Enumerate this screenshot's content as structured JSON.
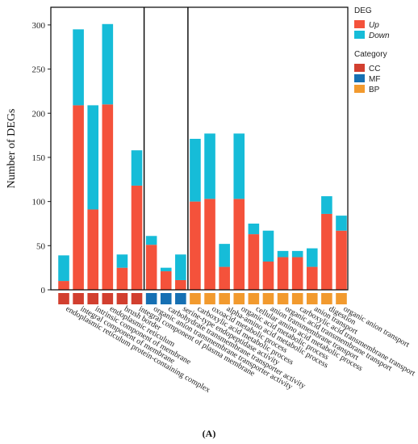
{
  "colors": {
    "up": "#F4523B",
    "down": "#16BCD8",
    "CC": "#D23F2F",
    "MF": "#1670B3",
    "BP": "#F29A2E"
  },
  "chart_data": {
    "type": "bar",
    "stacked": true,
    "ylabel": "Number of DEGs",
    "ylim": [
      0,
      320
    ],
    "yticks": [
      0,
      50,
      100,
      150,
      200,
      250,
      300
    ],
    "grid": false,
    "legend_position": "right",
    "legend": {
      "deg_title": "DEG",
      "deg_items": [
        {
          "key": "up",
          "label": "Up"
        },
        {
          "key": "down",
          "label": "Down"
        }
      ],
      "category_title": "Category",
      "category_items": [
        {
          "key": "CC",
          "label": "CC"
        },
        {
          "key": "MF",
          "label": "MF"
        },
        {
          "key": "BP",
          "label": "BP"
        }
      ]
    },
    "categories": [
      "endoplasmic reticulum protein-containing complex",
      "integral component of membrane",
      "intrinsic component of membrane",
      "endoplasmic reticulum",
      "brush border",
      "integral component of plasma membrane",
      "organic anion transmembrane transporter activity",
      "carbohydrate transmembrane transporter activity",
      "serine-type endopeptidase activity",
      "carboxylic acid metabolic process",
      "oxoacid metabolic process",
      "alpha-amino acid metabolic process",
      "organic acid metabolic process",
      "cellular amino acid metabolic process",
      "anion transmembrane transport",
      "organic acid transmembrane transport",
      "carboxylic acid transmembrane transport",
      "anion transport",
      "digestion",
      "organic anion transport"
    ],
    "category_group": [
      "CC",
      "CC",
      "CC",
      "CC",
      "CC",
      "CC",
      "MF",
      "MF",
      "MF",
      "BP",
      "BP",
      "BP",
      "BP",
      "BP",
      "BP",
      "BP",
      "BP",
      "BP",
      "BP",
      "BP"
    ],
    "series": [
      {
        "name": "Up",
        "values": [
          10,
          209,
          91,
          210,
          25,
          118,
          51,
          21,
          11,
          100,
          103,
          26,
          103,
          63,
          32,
          37,
          37,
          26,
          86,
          67
        ]
      },
      {
        "name": "Down",
        "values": [
          29,
          86,
          118,
          91,
          15,
          40,
          10,
          4,
          29,
          71,
          74,
          26,
          74,
          12,
          35,
          7,
          7,
          21,
          20,
          17
        ]
      }
    ]
  },
  "panel_label": "(A)"
}
